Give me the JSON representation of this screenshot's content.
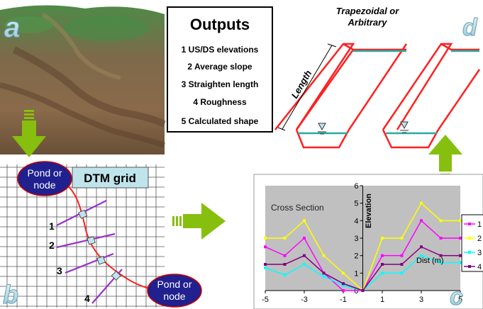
{
  "panels": {
    "a": {
      "letter": "a"
    },
    "b": {
      "letter": "b",
      "dtm_label": "DTM grid",
      "pond_start": [
        "Pond or",
        "node"
      ],
      "pond_end": [
        "Pond or",
        "node"
      ],
      "section_numbers": [
        "1",
        "2",
        "3",
        "4"
      ]
    },
    "c": {
      "letter": "c"
    },
    "d": {
      "letter": "d",
      "title": [
        "Trapezoidal or",
        "Arbitrary"
      ],
      "length_label": "Length"
    }
  },
  "outputs": {
    "title": "Outputs",
    "items": [
      "1 US/DS elevations",
      "2 Average slope",
      "3 Straighten length",
      "4 Roughness",
      "5 Calculated shape"
    ]
  },
  "chart_data": {
    "type": "line",
    "annotation": "Cross Section",
    "xlabel": "Dist (m)",
    "ylabel": "Elevation",
    "xlim": [
      -5,
      5
    ],
    "ylim": [
      0,
      6
    ],
    "x_ticks": [
      -5,
      -3,
      -1,
      1,
      3,
      5
    ],
    "y_ticks": [
      0,
      1,
      2,
      3,
      4,
      5,
      6
    ],
    "legend_placement": "right",
    "x": [
      -5,
      -4,
      -3,
      -2,
      -1,
      0,
      1,
      2,
      3,
      4,
      5
    ],
    "series": [
      {
        "name": "1",
        "color": "#ff00ff",
        "values": [
          2.5,
          2.0,
          3.0,
          1.0,
          0.0,
          0.0,
          2.0,
          2.0,
          4.0,
          3.0,
          3.0
        ]
      },
      {
        "name": "2",
        "color": "#ffff00",
        "values": [
          3.0,
          3.0,
          4.0,
          2.0,
          1.0,
          0.0,
          3.0,
          3.0,
          5.0,
          4.0,
          4.0
        ]
      },
      {
        "name": "3",
        "color": "#00ffff",
        "values": [
          1.3,
          0.9,
          1.5,
          0.8,
          0.3,
          0.0,
          1.0,
          1.0,
          2.0,
          1.6,
          1.6
        ]
      },
      {
        "name": "4",
        "color": "#800080",
        "values": [
          1.5,
          1.5,
          2.0,
          1.0,
          0.4,
          0.0,
          1.5,
          1.5,
          2.5,
          2.0,
          2.0
        ]
      }
    ]
  },
  "colors": {
    "arrow_green": "#86bf0e",
    "pond_fill": "#20208f",
    "dtm_box": "#bfe4ec",
    "channel_red": "#ff2020",
    "channel_teal": "#2aa9a2",
    "plot_bg": "#c0c0c0"
  }
}
